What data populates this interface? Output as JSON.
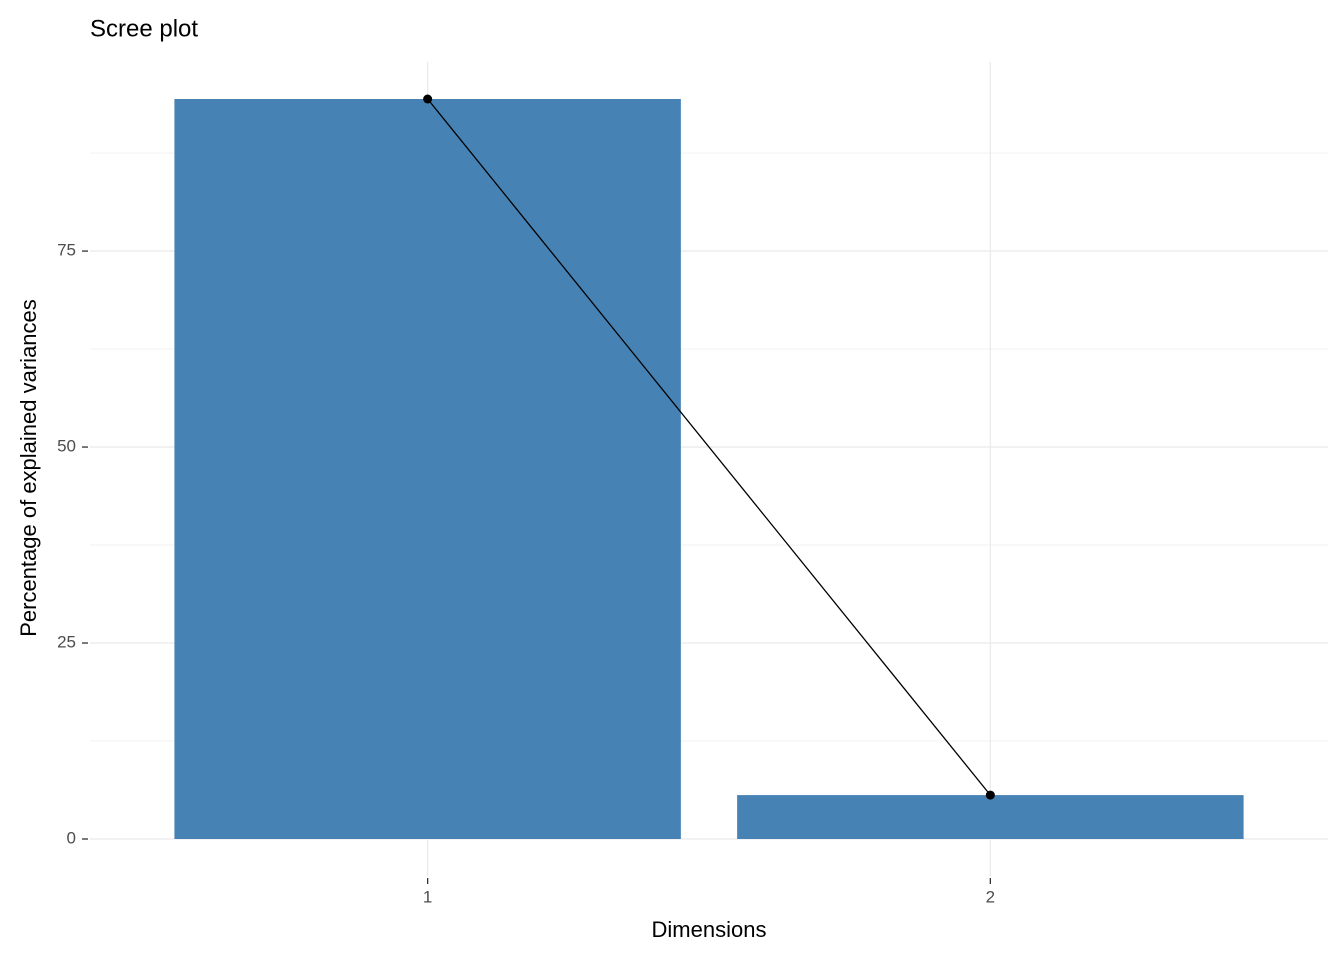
{
  "chart_data": {
    "type": "bar",
    "title": "Scree plot",
    "x_label": "Dimensions",
    "y_label": "Percentage of explained variances",
    "categories": [
      "1",
      "2"
    ],
    "values": [
      94.4,
      5.6
    ],
    "color": "#4682b4",
    "line": true,
    "line_color": "#000000",
    "ylim": [
      -4.72,
      99.12
    ],
    "yticks": [
      0,
      25,
      50,
      75
    ],
    "yminor": [
      12.5,
      37.5,
      62.5,
      87.5
    ],
    "grid": true
  }
}
